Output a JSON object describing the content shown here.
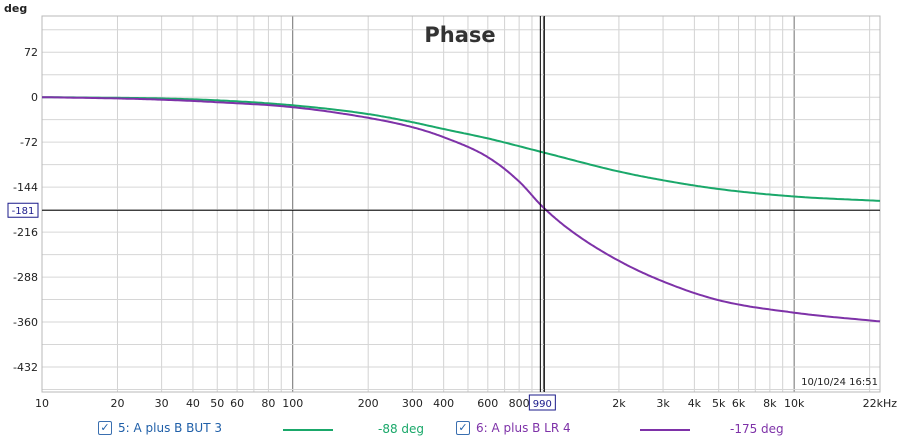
{
  "chart_data": {
    "type": "line",
    "title": "Phase",
    "ylabel": "deg",
    "xlabel": "",
    "x_unit": "Hz",
    "x_scale": "log",
    "xlim": [
      10,
      22000
    ],
    "ylim": [
      -472,
      130
    ],
    "y_ticks": [
      72,
      0,
      -72,
      -144,
      -216,
      -288,
      -360,
      -432
    ],
    "x_ticks": [
      {
        "v": 10,
        "label": "10"
      },
      {
        "v": 20,
        "label": "20"
      },
      {
        "v": 30,
        "label": "30"
      },
      {
        "v": 40,
        "label": "40"
      },
      {
        "v": 50,
        "label": "50"
      },
      {
        "v": 60,
        "label": "60"
      },
      {
        "v": 80,
        "label": "80"
      },
      {
        "v": 100,
        "label": "100"
      },
      {
        "v": 200,
        "label": "200"
      },
      {
        "v": 300,
        "label": "300"
      },
      {
        "v": 400,
        "label": "400"
      },
      {
        "v": 600,
        "label": "600"
      },
      {
        "v": 800,
        "label": "800"
      },
      {
        "v": 2000,
        "label": "2k"
      },
      {
        "v": 3000,
        "label": "3k"
      },
      {
        "v": 4000,
        "label": "4k"
      },
      {
        "v": 5000,
        "label": "5k"
      },
      {
        "v": 6000,
        "label": "6k"
      },
      {
        "v": 8000,
        "label": "8k"
      },
      {
        "v": 10000,
        "label": "10k"
      },
      {
        "v": 22000,
        "label": "22kHz"
      }
    ],
    "cursor": {
      "x": 990,
      "x_label": "990",
      "y": -181,
      "y_label": "-181"
    },
    "timestamp": "10/10/24 16:51",
    "grid": true,
    "series": [
      {
        "name": "5: A plus B BUT 3",
        "color": "#1aa86a",
        "cursor_value": "-88 deg",
        "x": [
          10,
          20,
          30,
          50,
          100,
          200,
          300,
          400,
          600,
          990,
          2000,
          3000,
          5000,
          10000,
          22000
        ],
        "y": [
          0,
          -1,
          -2,
          -5,
          -13,
          -27,
          -40,
          -51,
          -66,
          -88,
          -119,
          -133,
          -147,
          -159,
          -166
        ]
      },
      {
        "name": "6: A plus B LR 4",
        "color": "#7e32a8",
        "cursor_value": "-175 deg",
        "x": [
          10,
          20,
          30,
          50,
          100,
          200,
          300,
          400,
          600,
          800,
          990,
          1300,
          2000,
          3000,
          5000,
          10000,
          22000
        ],
        "y": [
          0,
          -2,
          -4,
          -8,
          -16,
          -33,
          -48,
          -64,
          -96,
          -135,
          -175,
          -215,
          -262,
          -295,
          -325,
          -345,
          -359
        ]
      }
    ]
  },
  "legend": {
    "checkmark": "✓",
    "items": [
      {
        "label": "5: A plus B BUT 3",
        "value": "-88 deg",
        "color": "#1aa86a"
      },
      {
        "label": "6: A plus B LR 4",
        "value": "-175 deg",
        "color": "#7e32a8"
      }
    ]
  }
}
